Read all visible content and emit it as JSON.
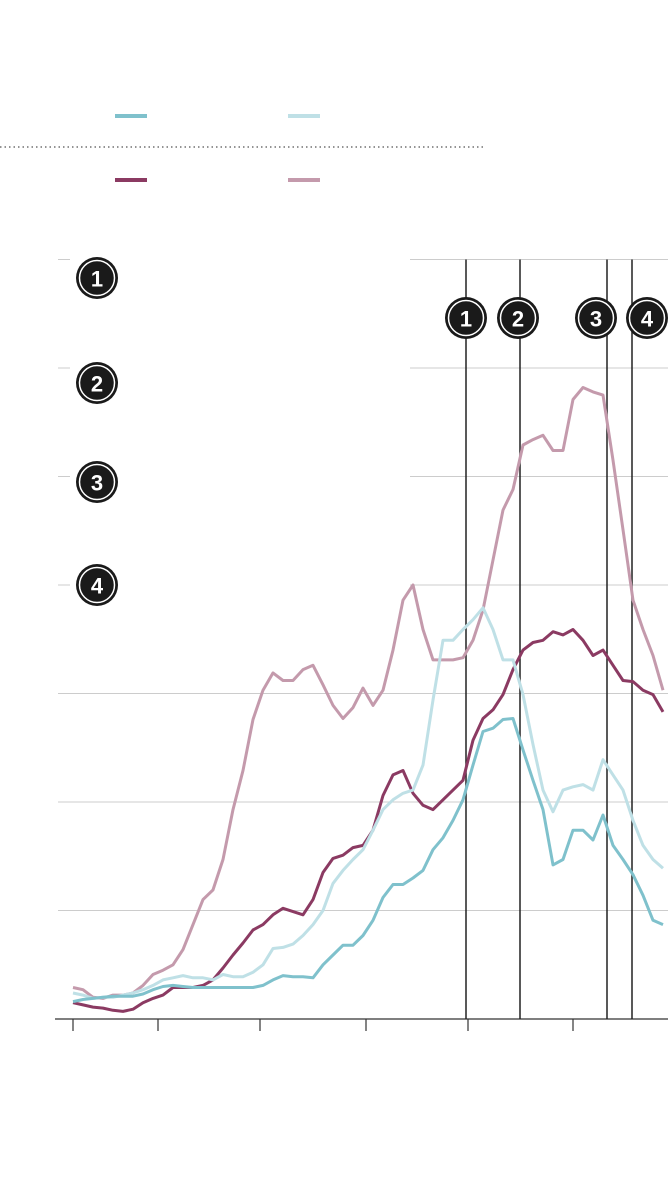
{
  "chart_data": {
    "type": "line",
    "x": [
      3,
      5,
      7,
      9,
      11,
      13,
      15,
      17,
      19,
      21,
      23,
      25,
      27,
      29,
      31,
      33,
      35,
      37,
      39,
      41,
      43,
      45,
      47,
      49,
      51,
      53,
      55,
      57,
      59,
      61,
      63,
      65,
      67,
      69,
      71,
      73,
      75,
      77,
      79,
      81,
      83,
      85,
      87,
      89,
      91,
      93,
      95,
      97,
      99,
      101,
      103,
      105,
      107,
      109,
      111,
      113,
      115,
      117,
      119,
      121
    ],
    "series": [
      {
        "color": "#7fc1cc",
        "values": [
          0.16,
          0.18,
          0.19,
          0.2,
          0.21,
          0.21,
          0.21,
          0.23,
          0.27,
          0.3,
          0.31,
          0.3,
          0.29,
          0.29,
          0.29,
          0.29,
          0.29,
          0.29,
          0.29,
          0.31,
          0.36,
          0.4,
          0.39,
          0.39,
          0.38,
          0.5,
          0.59,
          0.68,
          0.68,
          0.77,
          0.91,
          1.12,
          1.24,
          1.24,
          1.3,
          1.37,
          1.56,
          1.67,
          1.83,
          2.02,
          2.34,
          2.65,
          2.68,
          2.76,
          2.77,
          2.48,
          2.2,
          1.93,
          1.42,
          1.47,
          1.74,
          1.74,
          1.65,
          1.88,
          1.6,
          1.47,
          1.33,
          1.14,
          0.91,
          0.87
        ]
      },
      {
        "color": "#bfe0e6",
        "values": [
          0.24,
          0.22,
          0.19,
          0.2,
          0.2,
          0.22,
          0.24,
          0.27,
          0.31,
          0.36,
          0.38,
          0.4,
          0.38,
          0.38,
          0.36,
          0.41,
          0.39,
          0.39,
          0.43,
          0.5,
          0.65,
          0.66,
          0.69,
          0.77,
          0.87,
          1.0,
          1.25,
          1.37,
          1.47,
          1.56,
          1.74,
          1.93,
          2.02,
          2.08,
          2.11,
          2.34,
          2.94,
          3.49,
          3.49,
          3.59,
          3.68,
          3.79,
          3.59,
          3.31,
          3.31,
          2.99,
          2.53,
          2.11,
          1.91,
          2.11,
          2.14,
          2.16,
          2.11,
          2.39,
          2.25,
          2.11,
          1.83,
          1.6,
          1.47,
          1.39
        ]
      },
      {
        "color": "#8b3a62",
        "values": [
          0.15,
          0.13,
          0.11,
          0.1,
          0.08,
          0.07,
          0.09,
          0.15,
          0.19,
          0.22,
          0.29,
          0.29,
          0.29,
          0.31,
          0.36,
          0.47,
          0.59,
          0.7,
          0.82,
          0.87,
          0.96,
          1.02,
          0.99,
          0.96,
          1.1,
          1.35,
          1.48,
          1.51,
          1.58,
          1.6,
          1.74,
          2.06,
          2.25,
          2.29,
          2.08,
          1.97,
          1.93,
          2.02,
          2.11,
          2.2,
          2.57,
          2.77,
          2.85,
          2.99,
          3.22,
          3.4,
          3.47,
          3.49,
          3.57,
          3.54,
          3.59,
          3.49,
          3.35,
          3.4,
          3.26,
          3.12,
          3.11,
          3.03,
          2.99,
          2.83
        ]
      },
      {
        "color": "#c49aac",
        "values": [
          0.29,
          0.27,
          0.2,
          0.19,
          0.22,
          0.22,
          0.24,
          0.31,
          0.41,
          0.45,
          0.5,
          0.64,
          0.87,
          1.1,
          1.19,
          1.47,
          1.93,
          2.29,
          2.76,
          3.03,
          3.19,
          3.12,
          3.12,
          3.22,
          3.26,
          3.08,
          2.89,
          2.77,
          2.87,
          3.05,
          2.89,
          3.03,
          3.4,
          3.86,
          4.0,
          3.59,
          3.31,
          3.31,
          3.31,
          3.33,
          3.49,
          3.77,
          4.23,
          4.69,
          4.88,
          5.29,
          5.34,
          5.38,
          5.24,
          5.24,
          5.71,
          5.82,
          5.78,
          5.75,
          5.15,
          4.51,
          3.86,
          3.59,
          3.35,
          3.03
        ]
      }
    ],
    "xlim": [
      0,
      122
    ],
    "xticks": [
      3,
      20,
      40.4,
      61.6,
      82,
      103
    ],
    "ylim": [
      0,
      7
    ],
    "yticks": [
      0,
      1,
      2,
      3,
      4,
      5,
      6,
      7
    ],
    "grid": true,
    "events": [
      {
        "x": 81.6,
        "label": "1"
      },
      {
        "x": 92.4,
        "label": "2"
      },
      {
        "x": 109.8,
        "label": "3"
      },
      {
        "x": 114.8,
        "label": "4"
      }
    ],
    "notes": [
      "1",
      "2",
      "3",
      "4"
    ]
  }
}
